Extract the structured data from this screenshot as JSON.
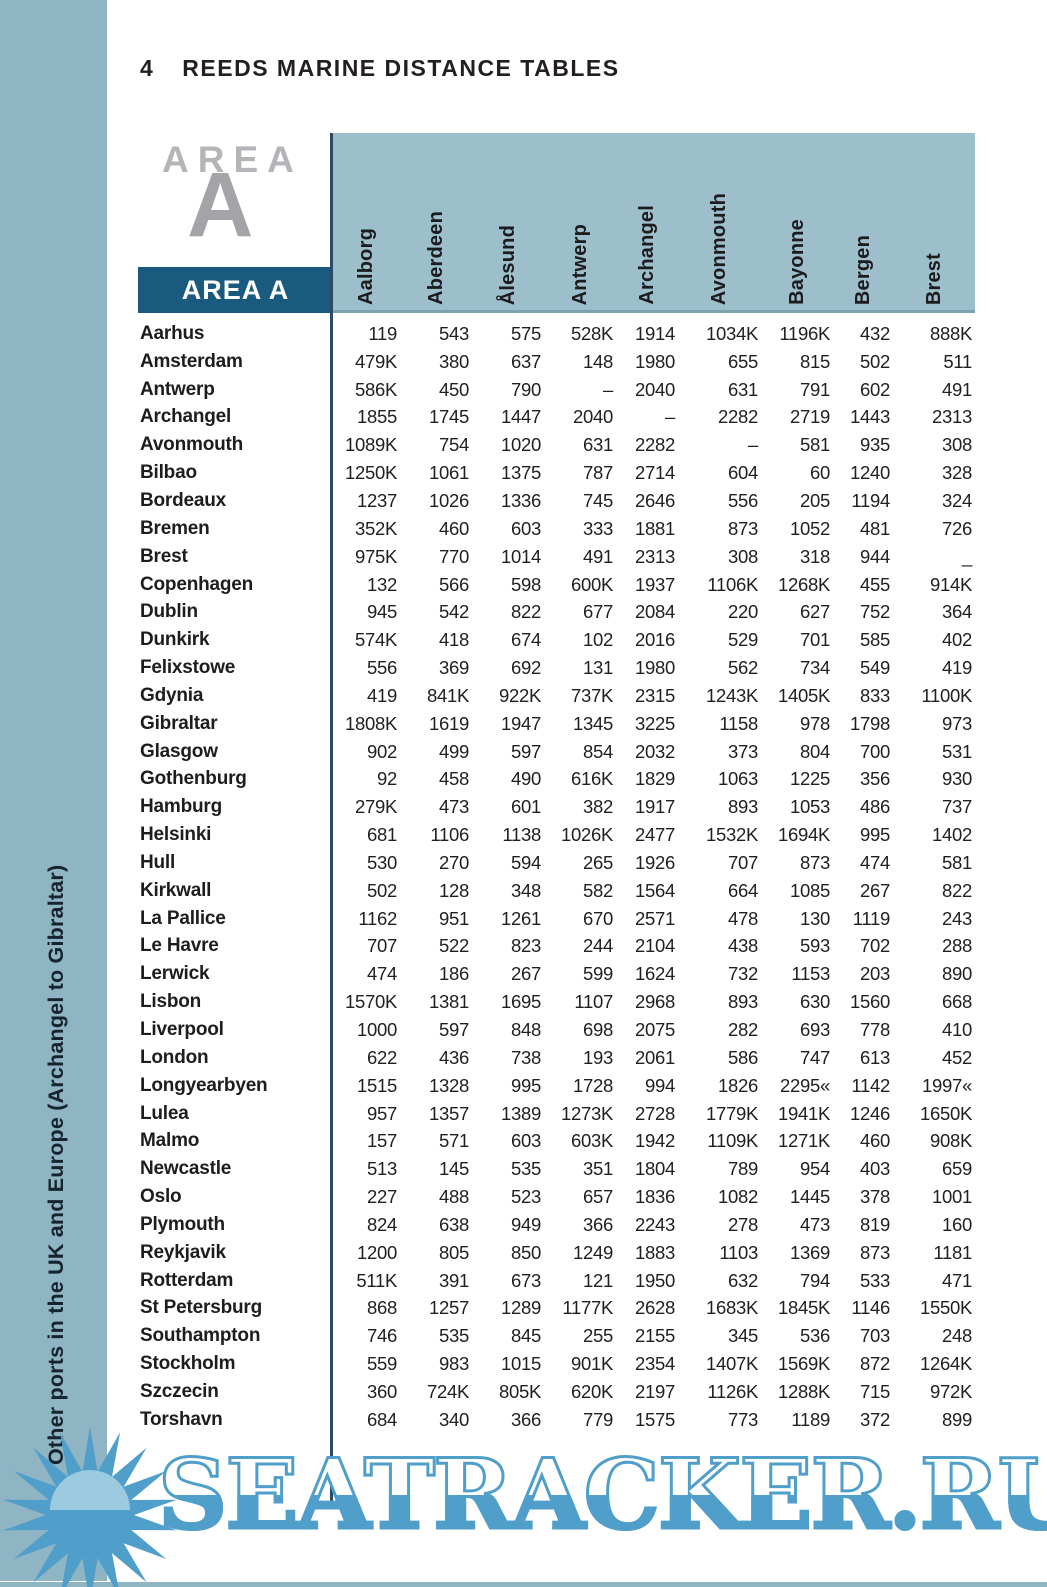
{
  "page": {
    "number": "4",
    "title": "REEDS MARINE DISTANCE TABLES",
    "sidebar_label": "Other ports in the UK and Europe (Archangel to Gibraltar)",
    "area_word": "AREA",
    "area_letter": "A",
    "area_band_label": "AREA A",
    "watermark": "SEATRACKER.RU",
    "logo_icon": "sunburst-logo"
  },
  "colors": {
    "sidebar_blue": "#8fb4c3",
    "header_band_blue": "#9dbfcc",
    "area_band_navy": "#1a5a7e",
    "rule_navy": "#2a4a68",
    "watermark_blue": "#4f9fca",
    "text_dark": "#1e1e20"
  },
  "table": {
    "columns": [
      "Aalborg",
      "Aberdeen",
      "Ålesund",
      "Antwerp",
      "Archangel",
      "Avonmouth",
      "Bayonne",
      "Bergen",
      "Brest"
    ],
    "rows": [
      {
        "port": "Aarhus",
        "values": [
          "119",
          "543",
          "575",
          "528K",
          "1914",
          "1034K",
          "1196K",
          "432",
          "888K"
        ]
      },
      {
        "port": "Amsterdam",
        "values": [
          "479K",
          "380",
          "637",
          "148",
          "1980",
          "655",
          "815",
          "502",
          "511"
        ]
      },
      {
        "port": "Antwerp",
        "values": [
          "586K",
          "450",
          "790",
          "–",
          "2040",
          "631",
          "791",
          "602",
          "491"
        ]
      },
      {
        "port": "Archangel",
        "values": [
          "1855",
          "1745",
          "1447",
          "2040",
          "–",
          "2282",
          "2719",
          "1443",
          "2313"
        ]
      },
      {
        "port": "Avonmouth",
        "values": [
          "1089K",
          "754",
          "1020",
          "631",
          "2282",
          "–",
          "581",
          "935",
          "308"
        ]
      },
      {
        "port": "Bilbao",
        "values": [
          "1250K",
          "1061",
          "1375",
          "787",
          "2714",
          "604",
          "60",
          "1240",
          "328"
        ]
      },
      {
        "port": "Bordeaux",
        "values": [
          "1237",
          "1026",
          "1336",
          "745",
          "2646",
          "556",
          "205",
          "1194",
          "324"
        ]
      },
      {
        "port": "Bremen",
        "values": [
          "352K",
          "460",
          "603",
          "333",
          "1881",
          "873",
          "1052",
          "481",
          "726"
        ]
      },
      {
        "port": "Brest",
        "values": [
          "975K",
          "770",
          "1014",
          "491",
          "2313",
          "308",
          "318",
          "944",
          "_"
        ]
      },
      {
        "port": "Copenhagen",
        "values": [
          "132",
          "566",
          "598",
          "600K",
          "1937",
          "1106K",
          "1268K",
          "455",
          "914K"
        ]
      },
      {
        "port": "Dublin",
        "values": [
          "945",
          "542",
          "822",
          "677",
          "2084",
          "220",
          "627",
          "752",
          "364"
        ]
      },
      {
        "port": "Dunkirk",
        "values": [
          "574K",
          "418",
          "674",
          "102",
          "2016",
          "529",
          "701",
          "585",
          "402"
        ]
      },
      {
        "port": "Felixstowe",
        "values": [
          "556",
          "369",
          "692",
          "131",
          "1980",
          "562",
          "734",
          "549",
          "419"
        ]
      },
      {
        "port": "Gdynia",
        "values": [
          "419",
          "841K",
          "922K",
          "737K",
          "2315",
          "1243K",
          "1405K",
          "833",
          "1100K"
        ]
      },
      {
        "port": "Gibraltar",
        "values": [
          "1808K",
          "1619",
          "1947",
          "1345",
          "3225",
          "1158",
          "978",
          "1798",
          "973"
        ]
      },
      {
        "port": "Glasgow",
        "values": [
          "902",
          "499",
          "597",
          "854",
          "2032",
          "373",
          "804",
          "700",
          "531"
        ]
      },
      {
        "port": "Gothenburg",
        "values": [
          "92",
          "458",
          "490",
          "616K",
          "1829",
          "1063",
          "1225",
          "356",
          "930"
        ]
      },
      {
        "port": "Hamburg",
        "values": [
          "279K",
          "473",
          "601",
          "382",
          "1917",
          "893",
          "1053",
          "486",
          "737"
        ]
      },
      {
        "port": "Helsinki",
        "values": [
          "681",
          "1106",
          "1138",
          "1026K",
          "2477",
          "1532K",
          "1694K",
          "995",
          "1402"
        ]
      },
      {
        "port": "Hull",
        "values": [
          "530",
          "270",
          "594",
          "265",
          "1926",
          "707",
          "873",
          "474",
          "581"
        ]
      },
      {
        "port": "Kirkwall",
        "values": [
          "502",
          "128",
          "348",
          "582",
          "1564",
          "664",
          "1085",
          "267",
          "822"
        ]
      },
      {
        "port": "La Pallice",
        "values": [
          "1162",
          "951",
          "1261",
          "670",
          "2571",
          "478",
          "130",
          "1119",
          "243"
        ]
      },
      {
        "port": "Le Havre",
        "values": [
          "707",
          "522",
          "823",
          "244",
          "2104",
          "438",
          "593",
          "702",
          "288"
        ]
      },
      {
        "port": "Lerwick",
        "values": [
          "474",
          "186",
          "267",
          "599",
          "1624",
          "732",
          "1153",
          "203",
          "890"
        ]
      },
      {
        "port": "Lisbon",
        "values": [
          "1570K",
          "1381",
          "1695",
          "1107",
          "2968",
          "893",
          "630",
          "1560",
          "668"
        ]
      },
      {
        "port": "Liverpool",
        "values": [
          "1000",
          "597",
          "848",
          "698",
          "2075",
          "282",
          "693",
          "778",
          "410"
        ]
      },
      {
        "port": "London",
        "values": [
          "622",
          "436",
          "738",
          "193",
          "2061",
          "586",
          "747",
          "613",
          "452"
        ]
      },
      {
        "port": "Longyearbyen",
        "values": [
          "1515",
          "1328",
          "995",
          "1728",
          "994",
          "1826",
          "2295«",
          "1142",
          "1997«"
        ]
      },
      {
        "port": "Lulea",
        "values": [
          "957",
          "1357",
          "1389",
          "1273K",
          "2728",
          "1779K",
          "1941K",
          "1246",
          "1650K"
        ]
      },
      {
        "port": "Malmo",
        "values": [
          "157",
          "571",
          "603",
          "603K",
          "1942",
          "1109K",
          "1271K",
          "460",
          "908K"
        ]
      },
      {
        "port": "Newcastle",
        "values": [
          "513",
          "145",
          "535",
          "351",
          "1804",
          "789",
          "954",
          "403",
          "659"
        ]
      },
      {
        "port": "Oslo",
        "values": [
          "227",
          "488",
          "523",
          "657",
          "1836",
          "1082",
          "1445",
          "378",
          "1001"
        ]
      },
      {
        "port": "Plymouth",
        "values": [
          "824",
          "638",
          "949",
          "366",
          "2243",
          "278",
          "473",
          "819",
          "160"
        ]
      },
      {
        "port": "Reykjavik",
        "values": [
          "1200",
          "805",
          "850",
          "1249",
          "1883",
          "1103",
          "1369",
          "873",
          "1181"
        ]
      },
      {
        "port": "Rotterdam",
        "values": [
          "511K",
          "391",
          "673",
          "121",
          "1950",
          "632",
          "794",
          "533",
          "471"
        ]
      },
      {
        "port": "St Petersburg",
        "values": [
          "868",
          "1257",
          "1289",
          "1177K",
          "2628",
          "1683K",
          "1845K",
          "1146",
          "1550K"
        ]
      },
      {
        "port": "Southampton",
        "values": [
          "746",
          "535",
          "845",
          "255",
          "2155",
          "345",
          "536",
          "703",
          "248"
        ]
      },
      {
        "port": "Stockholm",
        "values": [
          "559",
          "983",
          "1015",
          "901K",
          "2354",
          "1407K",
          "1569K",
          "872",
          "1264K"
        ]
      },
      {
        "port": "Szczecin",
        "values": [
          "360",
          "724K",
          "805K",
          "620K",
          "2197",
          "1126K",
          "1288K",
          "715",
          "972K"
        ]
      },
      {
        "port": "Torshavn",
        "values": [
          "684",
          "340",
          "366",
          "779",
          "1575",
          "773",
          "1189",
          "372",
          "899"
        ]
      }
    ]
  }
}
